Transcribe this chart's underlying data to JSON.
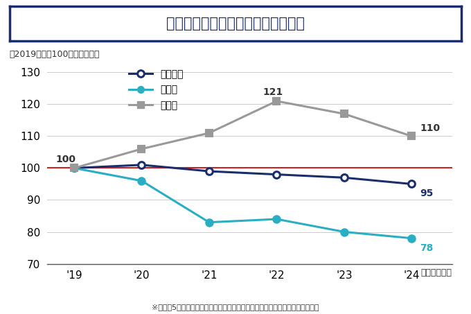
{
  "title": "私立大の一般選抜の志願者数の推移",
  "subtitle": "（2019年度を100とした指数）",
  "footnote": "※各年度5月中旬までにベネッセコーポレーションで確認した情報をもとに集計",
  "xlabel": "（入試年度）",
  "years": [
    "'19",
    "'20",
    "'21",
    "'22",
    "'23",
    "'24"
  ],
  "boshu": [
    100,
    101,
    99,
    98,
    97,
    95
  ],
  "shigan": [
    100,
    96,
    83,
    84,
    80,
    78
  ],
  "gokaku": [
    100,
    106,
    111,
    121,
    117,
    110
  ],
  "boshu_label": "募集人員",
  "shigan_label": "志願者",
  "gokaku_label": "合格者",
  "boshu_color": "#1a2e6e",
  "shigan_color": "#29aec4",
  "gokaku_color": "#999999",
  "refline_color": "#cc2222",
  "ylim": [
    70,
    133
  ],
  "yticks": [
    70,
    80,
    90,
    100,
    110,
    120,
    130
  ],
  "bg_color": "#ffffff",
  "title_box_color": "#1a2e6e"
}
